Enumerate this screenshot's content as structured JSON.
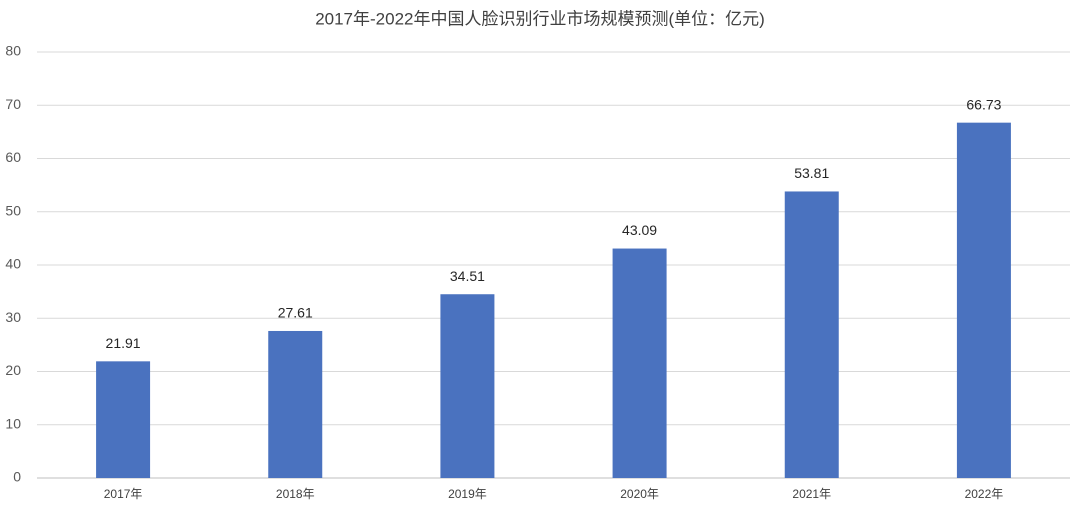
{
  "chart_data": {
    "type": "bar",
    "title": "2017年-2022年中国人脸识别行业市场规模预测(单位：亿元)",
    "categories": [
      "2017年",
      "2018年",
      "2019年",
      "2020年",
      "2021年",
      "2022年"
    ],
    "values": [
      21.91,
      27.61,
      34.51,
      43.09,
      53.81,
      66.73
    ],
    "color": "#4a72bf",
    "ylim": [
      0,
      80
    ],
    "yticks": [
      0,
      10,
      20,
      30,
      40,
      50,
      60,
      70,
      80
    ],
    "grid": true,
    "data_labels": true
  }
}
